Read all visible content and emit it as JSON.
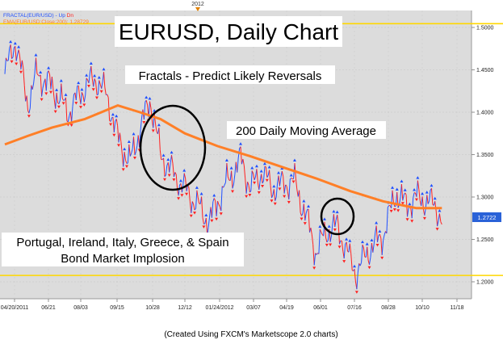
{
  "legend": {
    "fractal_label": "FRACTAL(EUR/USD) - ",
    "fractal_up": "Up",
    "fractal_dn": "Dn",
    "ema_label": "EMA(EUR/USD:Close:200): 1.28729"
  },
  "top_marker": "2012",
  "caption": "(Created Using FXCM's Marketscope 2.0 charts)",
  "colors": {
    "price_up": "#2050ff",
    "price_down": "#ff2020",
    "ema": "#ff7f27",
    "plot_bg": "#dcdcdc",
    "highlight_line": "#ffd700",
    "current_price_bg": "#2a62d8"
  },
  "annotations": {
    "title": "EURUSD, Daily Chart",
    "fractals": "Fractals - Predict Likely Reversals",
    "ma": "200 Daily Moving Average",
    "bond_line1": "Portugal, Ireland, Italy, Greece, & Spain",
    "bond_line2": "Bond Market Implosion"
  },
  "chart_data": {
    "type": "line",
    "title": "EURUSD, Daily Chart",
    "x_tick_labels": [
      "04/20/2011",
      "06/21",
      "08/03",
      "09/15",
      "10/28",
      "12/12",
      "01/24/2012",
      "03/07",
      "04/19",
      "06/01",
      "07/16",
      "08/28",
      "10/10",
      "11/18"
    ],
    "y_tick_labels": [
      "1.5000",
      "1.4500",
      "1.4000",
      "1.3500",
      "1.3000",
      "1.2500",
      "1.2000"
    ],
    "ylim": [
      1.18,
      1.52
    ],
    "current_price": "1.2722",
    "highlight_levels": [
      1.5045,
      1.2075
    ],
    "series": [
      {
        "name": "EUR/USD",
        "points": [
          [
            "04/20/2011",
            1.445
          ],
          [
            "05/04/2011",
            1.485
          ],
          [
            "05/20/2011",
            1.41
          ],
          [
            "06/01/2011",
            1.445
          ],
          [
            "06/21/2011",
            1.43
          ],
          [
            "07/12/2011",
            1.4
          ],
          [
            "08/03/2011",
            1.43
          ],
          [
            "08/17/2011",
            1.44
          ],
          [
            "09/01/2011",
            1.42
          ],
          [
            "09/15/2011",
            1.37
          ],
          [
            "10/01/2011",
            1.34
          ],
          [
            "10/14/2011",
            1.38
          ],
          [
            "10/28/2011",
            1.415
          ],
          [
            "11/10/2011",
            1.35
          ],
          [
            "11/25/2011",
            1.33
          ],
          [
            "12/12/2011",
            1.31
          ],
          [
            "12/29/2011",
            1.29
          ],
          [
            "01/13/2012",
            1.27
          ],
          [
            "01/24/2012",
            1.295
          ],
          [
            "02/07/2012",
            1.32
          ],
          [
            "02/24/2012",
            1.345
          ],
          [
            "03/07/2012",
            1.31
          ],
          [
            "03/22/2012",
            1.33
          ],
          [
            "04/05/2012",
            1.31
          ],
          [
            "04/19/2012",
            1.315
          ],
          [
            "05/03/2012",
            1.32
          ],
          [
            "05/18/2012",
            1.28
          ],
          [
            "06/01/2012",
            1.235
          ],
          [
            "06/15/2012",
            1.26
          ],
          [
            "06/29/2012",
            1.265
          ],
          [
            "07/16/2012",
            1.225
          ],
          [
            "07/24/2012",
            1.21
          ],
          [
            "08/07/2012",
            1.235
          ],
          [
            "08/28/2012",
            1.255
          ],
          [
            "09/14/2012",
            1.305
          ],
          [
            "09/28/2012",
            1.29
          ],
          [
            "10/10/2012",
            1.3
          ],
          [
            "10/24/2012",
            1.295
          ],
          [
            "11/05/2012",
            1.29
          ],
          [
            "11/13/2012",
            1.272
          ]
        ]
      },
      {
        "name": "EMA(EUR/USD:Close:200)",
        "points": [
          [
            "04/20/2011",
            1.362
          ],
          [
            "05/20/2011",
            1.372
          ],
          [
            "06/21/2011",
            1.382
          ],
          [
            "08/03/2011",
            1.392
          ],
          [
            "09/15/2011",
            1.408
          ],
          [
            "10/14/2011",
            1.4
          ],
          [
            "11/10/2011",
            1.392
          ],
          [
            "12/12/2011",
            1.375
          ],
          [
            "01/24/2012",
            1.36
          ],
          [
            "03/07/2012",
            1.348
          ],
          [
            "04/19/2012",
            1.335
          ],
          [
            "06/01/2012",
            1.322
          ],
          [
            "07/16/2012",
            1.307
          ],
          [
            "08/28/2012",
            1.295
          ],
          [
            "10/10/2012",
            1.287
          ],
          [
            "11/13/2012",
            1.287
          ]
        ]
      }
    ]
  }
}
